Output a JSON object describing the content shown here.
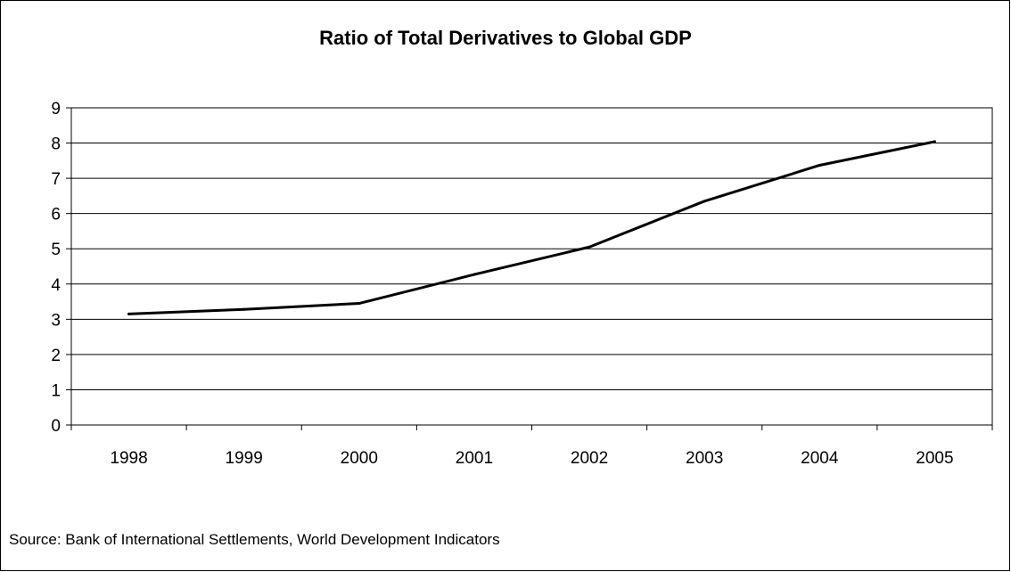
{
  "chart_data": {
    "type": "line",
    "title": "Ratio of Total Derivatives to Global GDP",
    "categories": [
      "1998",
      "1999",
      "2000",
      "2001",
      "2002",
      "2003",
      "2004",
      "2005"
    ],
    "series": [
      {
        "values": [
          3.15,
          3.28,
          3.45,
          4.27,
          5.05,
          6.35,
          7.37,
          8.04
        ],
        "color": "#000000"
      }
    ],
    "ylim": [
      0,
      9
    ],
    "yticks": [
      0,
      1,
      2,
      3,
      4,
      5,
      6,
      7,
      8,
      9
    ],
    "grid": true,
    "legend": "none",
    "source": "Source: Bank of International Settlements, World Development Indicators"
  }
}
